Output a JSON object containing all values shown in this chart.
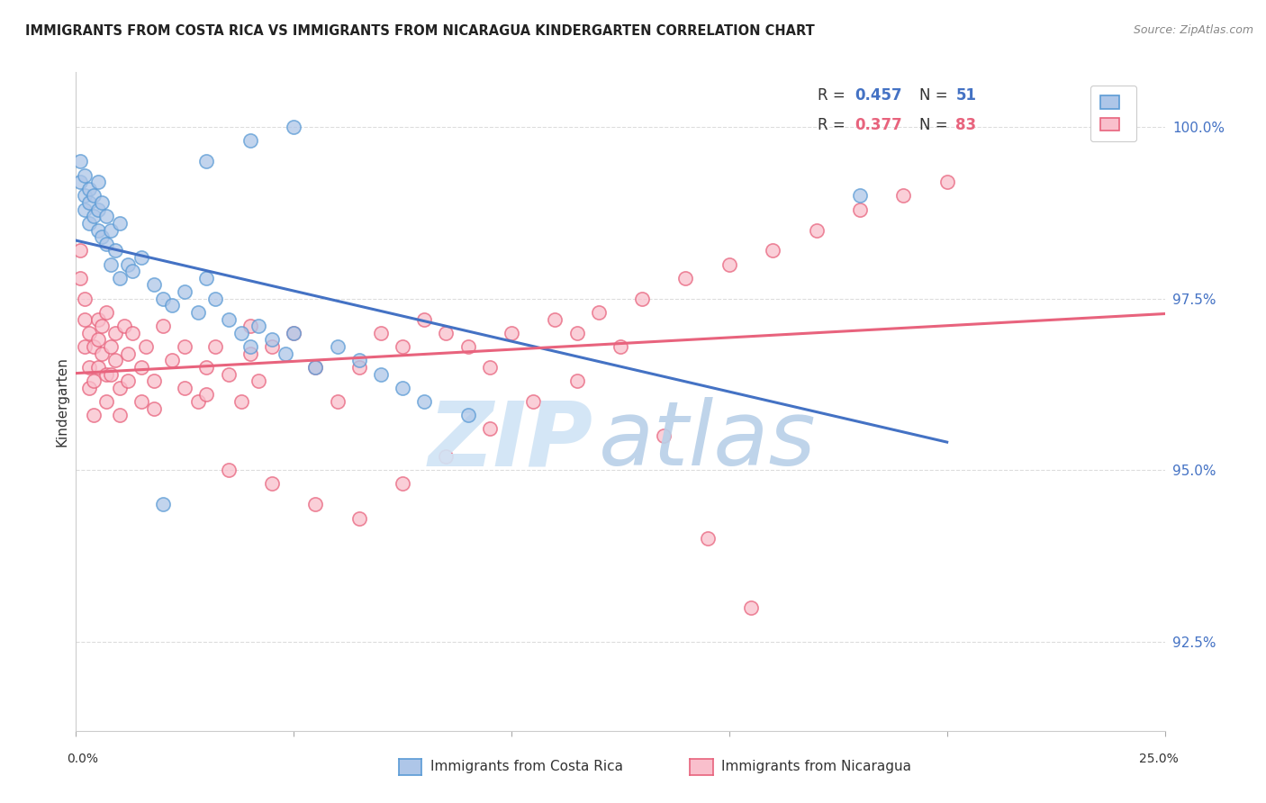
{
  "title": "IMMIGRANTS FROM COSTA RICA VS IMMIGRANTS FROM NICARAGUA KINDERGARTEN CORRELATION CHART",
  "source": "Source: ZipAtlas.com",
  "ylabel": "Kindergarten",
  "y_ticks": [
    92.5,
    95.0,
    97.5,
    100.0
  ],
  "y_tick_labels": [
    "92.5%",
    "95.0%",
    "97.5%",
    "100.0%"
  ],
  "x_min": 0.0,
  "x_max": 0.25,
  "y_min": 91.2,
  "y_max": 100.8,
  "legend_label_blue": "Immigrants from Costa Rica",
  "legend_label_pink": "Immigrants from Nicaragua",
  "r_blue": 0.457,
  "n_blue": 51,
  "r_pink": 0.377,
  "n_pink": 83,
  "color_blue_fill": "#aec6e8",
  "color_blue_edge": "#5b9bd5",
  "color_pink_fill": "#f9bfcc",
  "color_pink_edge": "#e8637d",
  "color_blue_line": "#4472c4",
  "color_pink_line": "#e8637d",
  "color_blue_text": "#4472c4",
  "color_pink_text": "#e8637d",
  "watermark_zip_color": "#d0e4f5",
  "watermark_atlas_color": "#b8d0e8",
  "blue_x": [
    0.001,
    0.001,
    0.002,
    0.002,
    0.002,
    0.003,
    0.003,
    0.003,
    0.004,
    0.004,
    0.005,
    0.005,
    0.005,
    0.006,
    0.006,
    0.007,
    0.007,
    0.008,
    0.008,
    0.009,
    0.01,
    0.01,
    0.012,
    0.013,
    0.015,
    0.018,
    0.02,
    0.022,
    0.025,
    0.028,
    0.03,
    0.032,
    0.035,
    0.038,
    0.04,
    0.042,
    0.045,
    0.048,
    0.05,
    0.055,
    0.06,
    0.065,
    0.07,
    0.075,
    0.08,
    0.09,
    0.03,
    0.04,
    0.05,
    0.18,
    0.02
  ],
  "blue_y": [
    99.2,
    99.5,
    99.0,
    99.3,
    98.8,
    99.1,
    98.6,
    98.9,
    98.7,
    99.0,
    98.5,
    98.8,
    99.2,
    98.4,
    98.9,
    98.3,
    98.7,
    98.5,
    98.0,
    98.2,
    98.6,
    97.8,
    98.0,
    97.9,
    98.1,
    97.7,
    97.5,
    97.4,
    97.6,
    97.3,
    97.8,
    97.5,
    97.2,
    97.0,
    96.8,
    97.1,
    96.9,
    96.7,
    97.0,
    96.5,
    96.8,
    96.6,
    96.4,
    96.2,
    96.0,
    95.8,
    99.5,
    99.8,
    100.0,
    99.0,
    94.5
  ],
  "pink_x": [
    0.001,
    0.001,
    0.002,
    0.002,
    0.002,
    0.003,
    0.003,
    0.003,
    0.004,
    0.004,
    0.004,
    0.005,
    0.005,
    0.005,
    0.006,
    0.006,
    0.007,
    0.007,
    0.007,
    0.008,
    0.008,
    0.009,
    0.009,
    0.01,
    0.01,
    0.011,
    0.012,
    0.012,
    0.013,
    0.015,
    0.015,
    0.016,
    0.018,
    0.018,
    0.02,
    0.022,
    0.025,
    0.025,
    0.028,
    0.03,
    0.03,
    0.032,
    0.035,
    0.038,
    0.04,
    0.04,
    0.042,
    0.045,
    0.05,
    0.055,
    0.06,
    0.065,
    0.07,
    0.075,
    0.08,
    0.085,
    0.09,
    0.095,
    0.1,
    0.11,
    0.115,
    0.12,
    0.13,
    0.14,
    0.15,
    0.16,
    0.17,
    0.18,
    0.19,
    0.2,
    0.035,
    0.045,
    0.055,
    0.065,
    0.075,
    0.085,
    0.095,
    0.105,
    0.115,
    0.125,
    0.135,
    0.145,
    0.155
  ],
  "pink_y": [
    98.2,
    97.8,
    97.5,
    97.2,
    96.8,
    97.0,
    96.5,
    96.2,
    96.8,
    96.3,
    95.8,
    97.2,
    96.9,
    96.5,
    97.1,
    96.7,
    96.4,
    96.0,
    97.3,
    96.8,
    96.4,
    97.0,
    96.6,
    96.2,
    95.8,
    97.1,
    96.7,
    96.3,
    97.0,
    96.5,
    96.0,
    96.8,
    96.3,
    95.9,
    97.1,
    96.6,
    96.2,
    96.8,
    96.0,
    96.5,
    96.1,
    96.8,
    96.4,
    96.0,
    97.1,
    96.7,
    96.3,
    96.8,
    97.0,
    96.5,
    96.0,
    96.5,
    97.0,
    96.8,
    97.2,
    97.0,
    96.8,
    96.5,
    97.0,
    97.2,
    97.0,
    97.3,
    97.5,
    97.8,
    98.0,
    98.2,
    98.5,
    98.8,
    99.0,
    99.2,
    95.0,
    94.8,
    94.5,
    94.3,
    94.8,
    95.2,
    95.6,
    96.0,
    96.3,
    96.8,
    95.5,
    94.0,
    93.0
  ]
}
